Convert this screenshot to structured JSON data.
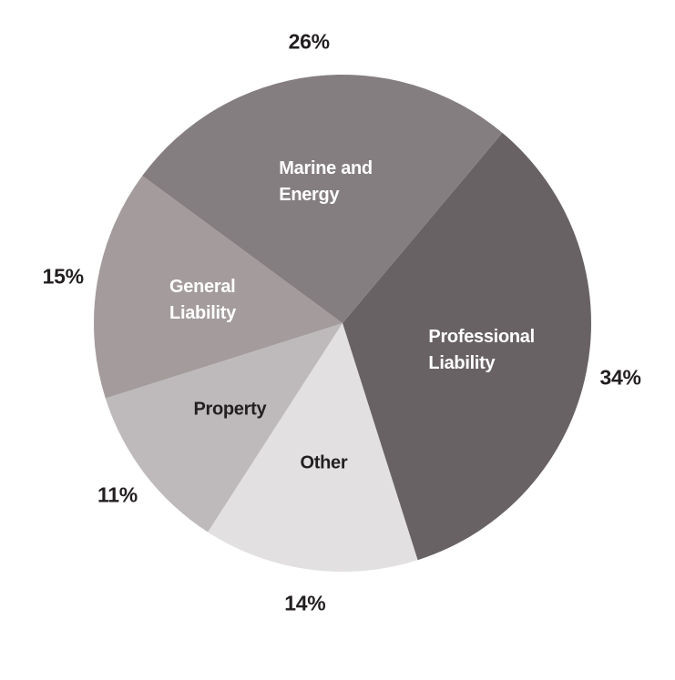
{
  "chart_data": {
    "type": "pie",
    "categories": [
      "Professional\nLiability",
      "Other",
      "Property",
      "General\nLiability",
      "Marine and\nEnergy"
    ],
    "values": [
      34,
      14,
      11,
      15,
      26
    ],
    "value_labels": [
      "34%",
      "14%",
      "11%",
      "15%",
      "26%"
    ],
    "colors": [
      "#696264",
      "#e2e0e1",
      "#bebabb",
      "#a39b9c",
      "#857e80"
    ],
    "label_colors": [
      "#ffffff",
      "#231f20",
      "#231f20",
      "#ffffff",
      "#ffffff"
    ]
  }
}
